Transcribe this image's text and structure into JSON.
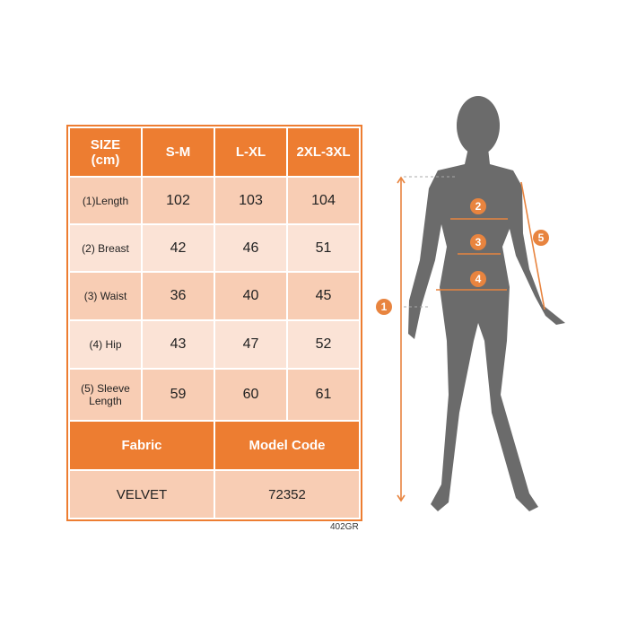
{
  "size_chart": {
    "header": [
      "SIZE\n(cm)",
      "S-M",
      "L-XL",
      "2XL-3XL"
    ],
    "header_label_line1": "SIZE",
    "header_label_line2": "(cm)",
    "sizes": [
      "S-M",
      "L-XL",
      "2XL-3XL"
    ],
    "rows": [
      {
        "label": "(1)Length",
        "values": [
          "102",
          "103",
          "104"
        ]
      },
      {
        "label": "(2) Breast",
        "values": [
          "42",
          "46",
          "51"
        ]
      },
      {
        "label": "(3) Waist",
        "values": [
          "36",
          "40",
          "45"
        ]
      },
      {
        "label": "(4) Hip",
        "values": [
          "43",
          "47",
          "52"
        ]
      },
      {
        "label_line1": "(5) Sleeve",
        "label_line2": "Length",
        "values": [
          "59",
          "60",
          "61"
        ]
      }
    ],
    "fabric_label": "Fabric",
    "model_code_label": "Model Code",
    "fabric_value": "VELVET",
    "model_code_value": "72352"
  },
  "product_code": "402GR",
  "figure_markers": [
    "1",
    "2",
    "3",
    "4",
    "5"
  ],
  "colors": {
    "accent": "#ED7D31",
    "silhouette": "#6B6B6B",
    "cell_dark": "#F8CDB4",
    "cell_light": "#FBE3D6"
  }
}
